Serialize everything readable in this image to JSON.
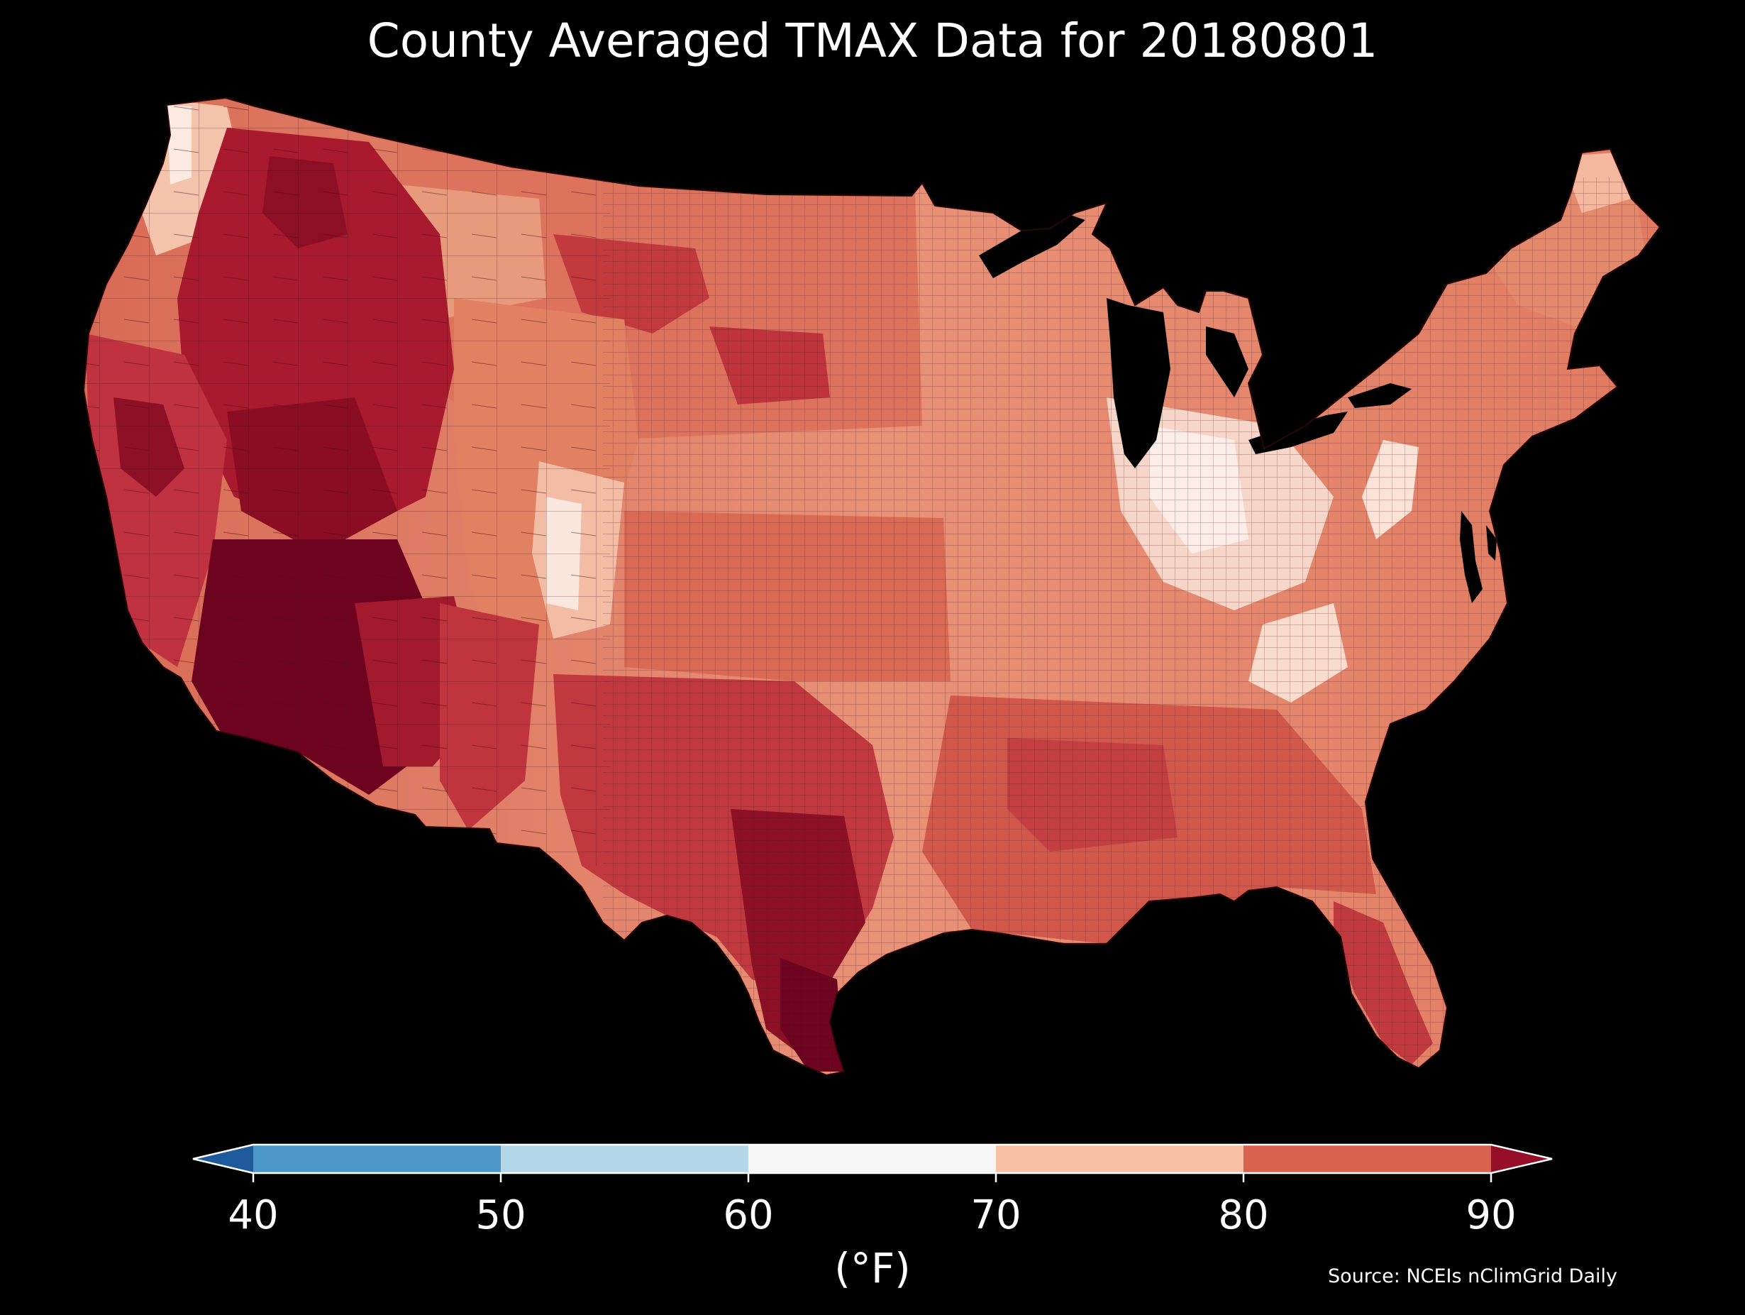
{
  "title": "County Averaged TMAX Data for 20180801",
  "map": {
    "region": "Contiguous United States",
    "variable": "TMAX",
    "date": "20180801",
    "aggregation": "County averaged",
    "background_color": "#000000",
    "county_border_color": "#3a1010"
  },
  "colorbar": {
    "unit_label": "(°F)",
    "ticks": [
      "40",
      "50",
      "60",
      "70",
      "80",
      "90"
    ],
    "extend": "both",
    "bins": [
      {
        "range": "< 40",
        "color": "#1f5b9c"
      },
      {
        "range": "40-50",
        "color": "#4b98c8"
      },
      {
        "range": "50-60",
        "color": "#b3d6e9"
      },
      {
        "range": "60-70",
        "color": "#f5f5f5"
      },
      {
        "range": "70-80",
        "color": "#f8c1a6"
      },
      {
        "range": "80-90",
        "color": "#d8614f"
      },
      {
        "range": "> 90",
        "color": "#960f28"
      }
    ]
  },
  "source": "Source: NCEIs nClimGrid Daily"
}
